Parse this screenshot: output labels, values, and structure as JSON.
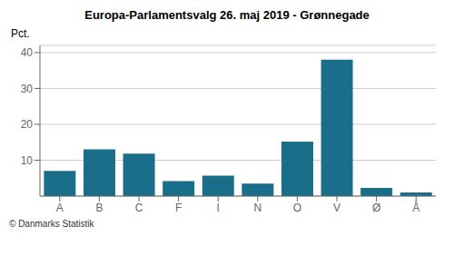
{
  "chart_data": {
    "type": "bar",
    "title": "Europa-Parlamentsvalg 26. maj 2019 - Grønnegade",
    "categories": [
      "A",
      "B",
      "C",
      "F",
      "I",
      "N",
      "O",
      "V",
      "Ø",
      "Å"
    ],
    "values": [
      7.0,
      13.0,
      11.8,
      4.2,
      5.7,
      3.5,
      15.2,
      38.0,
      2.3,
      1.0
    ],
    "color": "#1a6e8a",
    "ylabel": "Pct.",
    "ylim": [
      0,
      42
    ],
    "yticks": [
      10,
      20,
      30,
      40
    ],
    "grid": true,
    "annotations": [
      "© Danmarks Statistik"
    ]
  }
}
